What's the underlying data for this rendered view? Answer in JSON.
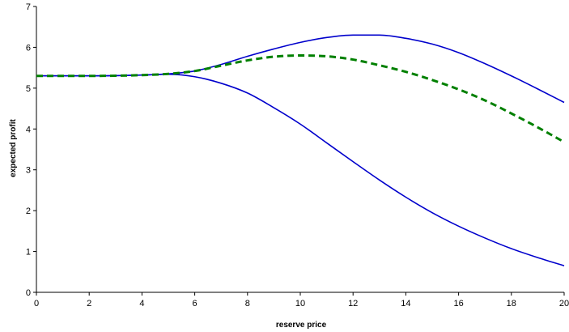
{
  "chart_data": {
    "type": "line",
    "title": "",
    "xlabel": "reserve price",
    "ylabel": "expected profit",
    "xlim": [
      0,
      20
    ],
    "ylim": [
      0,
      7
    ],
    "x_ticks": [
      0,
      2,
      4,
      6,
      8,
      10,
      12,
      14,
      16,
      18,
      20
    ],
    "y_ticks": [
      0,
      1,
      2,
      3,
      4,
      5,
      6,
      7
    ],
    "grid": false,
    "legend": "none",
    "series": [
      {
        "style": "solid",
        "color": "#0000cc",
        "x": [
          0,
          2,
          4,
          5,
          6,
          7,
          8,
          9,
          10,
          11,
          12,
          13,
          14,
          15,
          16,
          17,
          18,
          19,
          20
        ],
        "y": [
          5.3,
          5.3,
          5.32,
          5.35,
          5.42,
          5.58,
          5.78,
          5.96,
          6.12,
          6.24,
          6.3,
          6.3,
          6.22,
          6.08,
          5.87,
          5.6,
          5.3,
          4.98,
          4.65
        ]
      },
      {
        "style": "dashed",
        "color": "#008000",
        "x": [
          0,
          2,
          4,
          5,
          6,
          7,
          8,
          9,
          10,
          11,
          12,
          13,
          14,
          15,
          16,
          17,
          18,
          19,
          20
        ],
        "y": [
          5.3,
          5.3,
          5.32,
          5.35,
          5.42,
          5.55,
          5.68,
          5.77,
          5.8,
          5.78,
          5.7,
          5.56,
          5.4,
          5.2,
          4.97,
          4.7,
          4.38,
          4.04,
          3.68
        ]
      },
      {
        "style": "solid",
        "color": "#0000cc",
        "x": [
          0,
          2,
          4,
          5,
          6,
          7,
          8,
          9,
          10,
          11,
          12,
          13,
          14,
          15,
          16,
          17,
          18,
          19,
          20
        ],
        "y": [
          5.3,
          5.3,
          5.32,
          5.34,
          5.28,
          5.12,
          4.88,
          4.52,
          4.12,
          3.66,
          3.2,
          2.75,
          2.33,
          1.95,
          1.62,
          1.33,
          1.07,
          0.85,
          0.65
        ]
      }
    ]
  }
}
